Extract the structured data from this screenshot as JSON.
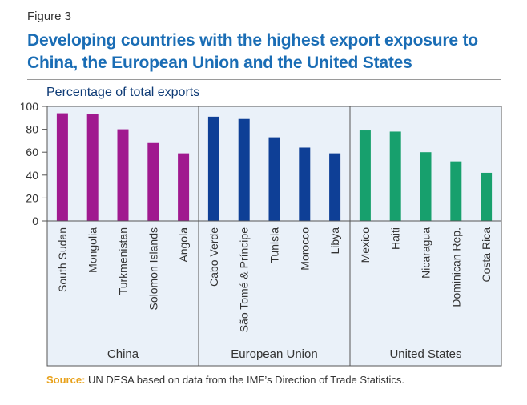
{
  "figure_label": "Figure 3",
  "title": "Developing countries with the highest export exposure to China, the European Union and the United States",
  "source": {
    "label": "Source:",
    "text": "UN DESA based on data from the IMF’s Direction of Trade Statistics."
  },
  "colors": {
    "China": "#a0198f",
    "European Union": "#0e3f96",
    "United States": "#17a06d",
    "plot_background": "#eaf1f9",
    "title": "#1a6db5"
  },
  "chart_data": {
    "type": "bar",
    "ylabel": "Percentage of total exports",
    "ylim": [
      0,
      100
    ],
    "yticks": [
      0,
      20,
      40,
      60,
      80,
      100
    ],
    "grid": false,
    "categories": [
      "South Sudan",
      "Mongolia",
      "Turkmenistan",
      "Solomon Islands",
      "Angola",
      "Cabo Verde",
      "São Tomé & Príncipe",
      "Tunisia",
      "Morocco",
      "Libya",
      "Mexico",
      "Haiti",
      "Nicaragua",
      "Dominican Rep.",
      "Costa Rica"
    ],
    "groups": [
      {
        "name": "China",
        "countries": [
          "South Sudan",
          "Mongolia",
          "Turkmenistan",
          "Solomon Islands",
          "Angola"
        ],
        "values": [
          94,
          93,
          80,
          68,
          59
        ]
      },
      {
        "name": "European Union",
        "countries": [
          "Cabo Verde",
          "São Tomé & Príncipe",
          "Tunisia",
          "Morocco",
          "Libya"
        ],
        "values": [
          91,
          89,
          73,
          64,
          59
        ]
      },
      {
        "name": "United States",
        "countries": [
          "Mexico",
          "Haiti",
          "Nicaragua",
          "Dominican Rep.",
          "Costa Rica"
        ],
        "values": [
          79,
          78,
          60,
          52,
          42
        ]
      }
    ]
  }
}
